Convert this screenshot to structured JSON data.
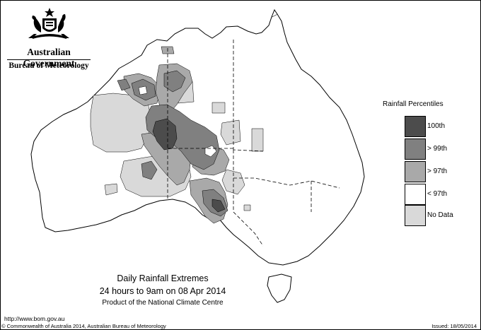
{
  "header": {
    "gov_name": "Australian Government",
    "agency": "Bureau of Meteorology",
    "crest_icon": "coat-of-arms-icon"
  },
  "map": {
    "region": "Australia",
    "land_color": "#ffffff",
    "border_color": "#000000"
  },
  "legend": {
    "title": "Rainfall Percentiles",
    "items": [
      {
        "label": "100th",
        "color": "#4c4c4c"
      },
      {
        "label": "> 99th",
        "color": "#808080"
      },
      {
        "label": "> 97th",
        "color": "#a9a9a9"
      },
      {
        "label": "< 97th",
        "color": "#ffffff"
      },
      {
        "label": "No Data",
        "color": "#d9d9d9"
      }
    ]
  },
  "caption": {
    "title": "Daily Rainfall Extremes",
    "period": "24 hours to 9am on 08 Apr 2014",
    "product": "Product of the National Climate Centre"
  },
  "footer": {
    "url": "http://www.bom.gov.au",
    "copyright": "© Commonwealth of Australia 2014, Australian Bureau of Meteorology",
    "issued": "Issued: 18/05/2014"
  }
}
